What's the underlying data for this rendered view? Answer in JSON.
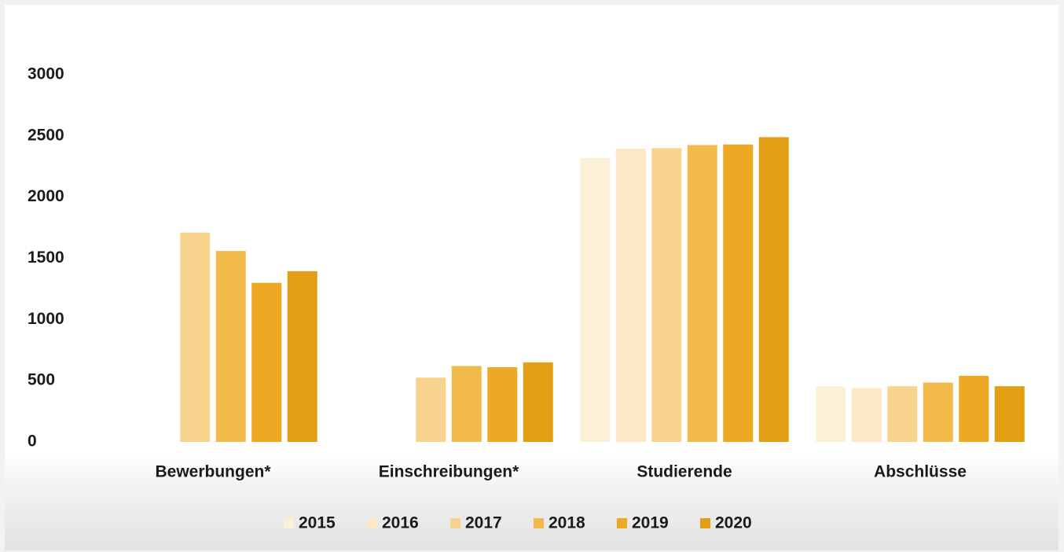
{
  "chart_data": {
    "type": "bar",
    "categories": [
      "Bewerbungen*",
      "Einschreibungen*",
      "Studierende",
      "Abschlüsse"
    ],
    "series": [
      {
        "name": "2015",
        "color": "#fdf0d9",
        "values": [
          null,
          null,
          2320,
          455
        ]
      },
      {
        "name": "2016",
        "color": "#fce8c6",
        "values": [
          null,
          null,
          2395,
          440
        ]
      },
      {
        "name": "2017",
        "color": "#f7d38d",
        "values": [
          1710,
          525,
          2400,
          455
        ]
      },
      {
        "name": "2018",
        "color": "#f2b94b",
        "values": [
          1560,
          620,
          2425,
          485
        ]
      },
      {
        "name": "2019",
        "color": "#eda923",
        "values": [
          1300,
          610,
          2430,
          540
        ]
      },
      {
        "name": "2020",
        "color": "#e29f15",
        "values": [
          1395,
          650,
          2490,
          455
        ]
      }
    ],
    "ylim": [
      0,
      3000
    ],
    "yticks": [
      0,
      500,
      1000,
      1500,
      2000,
      2500,
      3000
    ],
    "grid": false,
    "legend": "bottom"
  }
}
